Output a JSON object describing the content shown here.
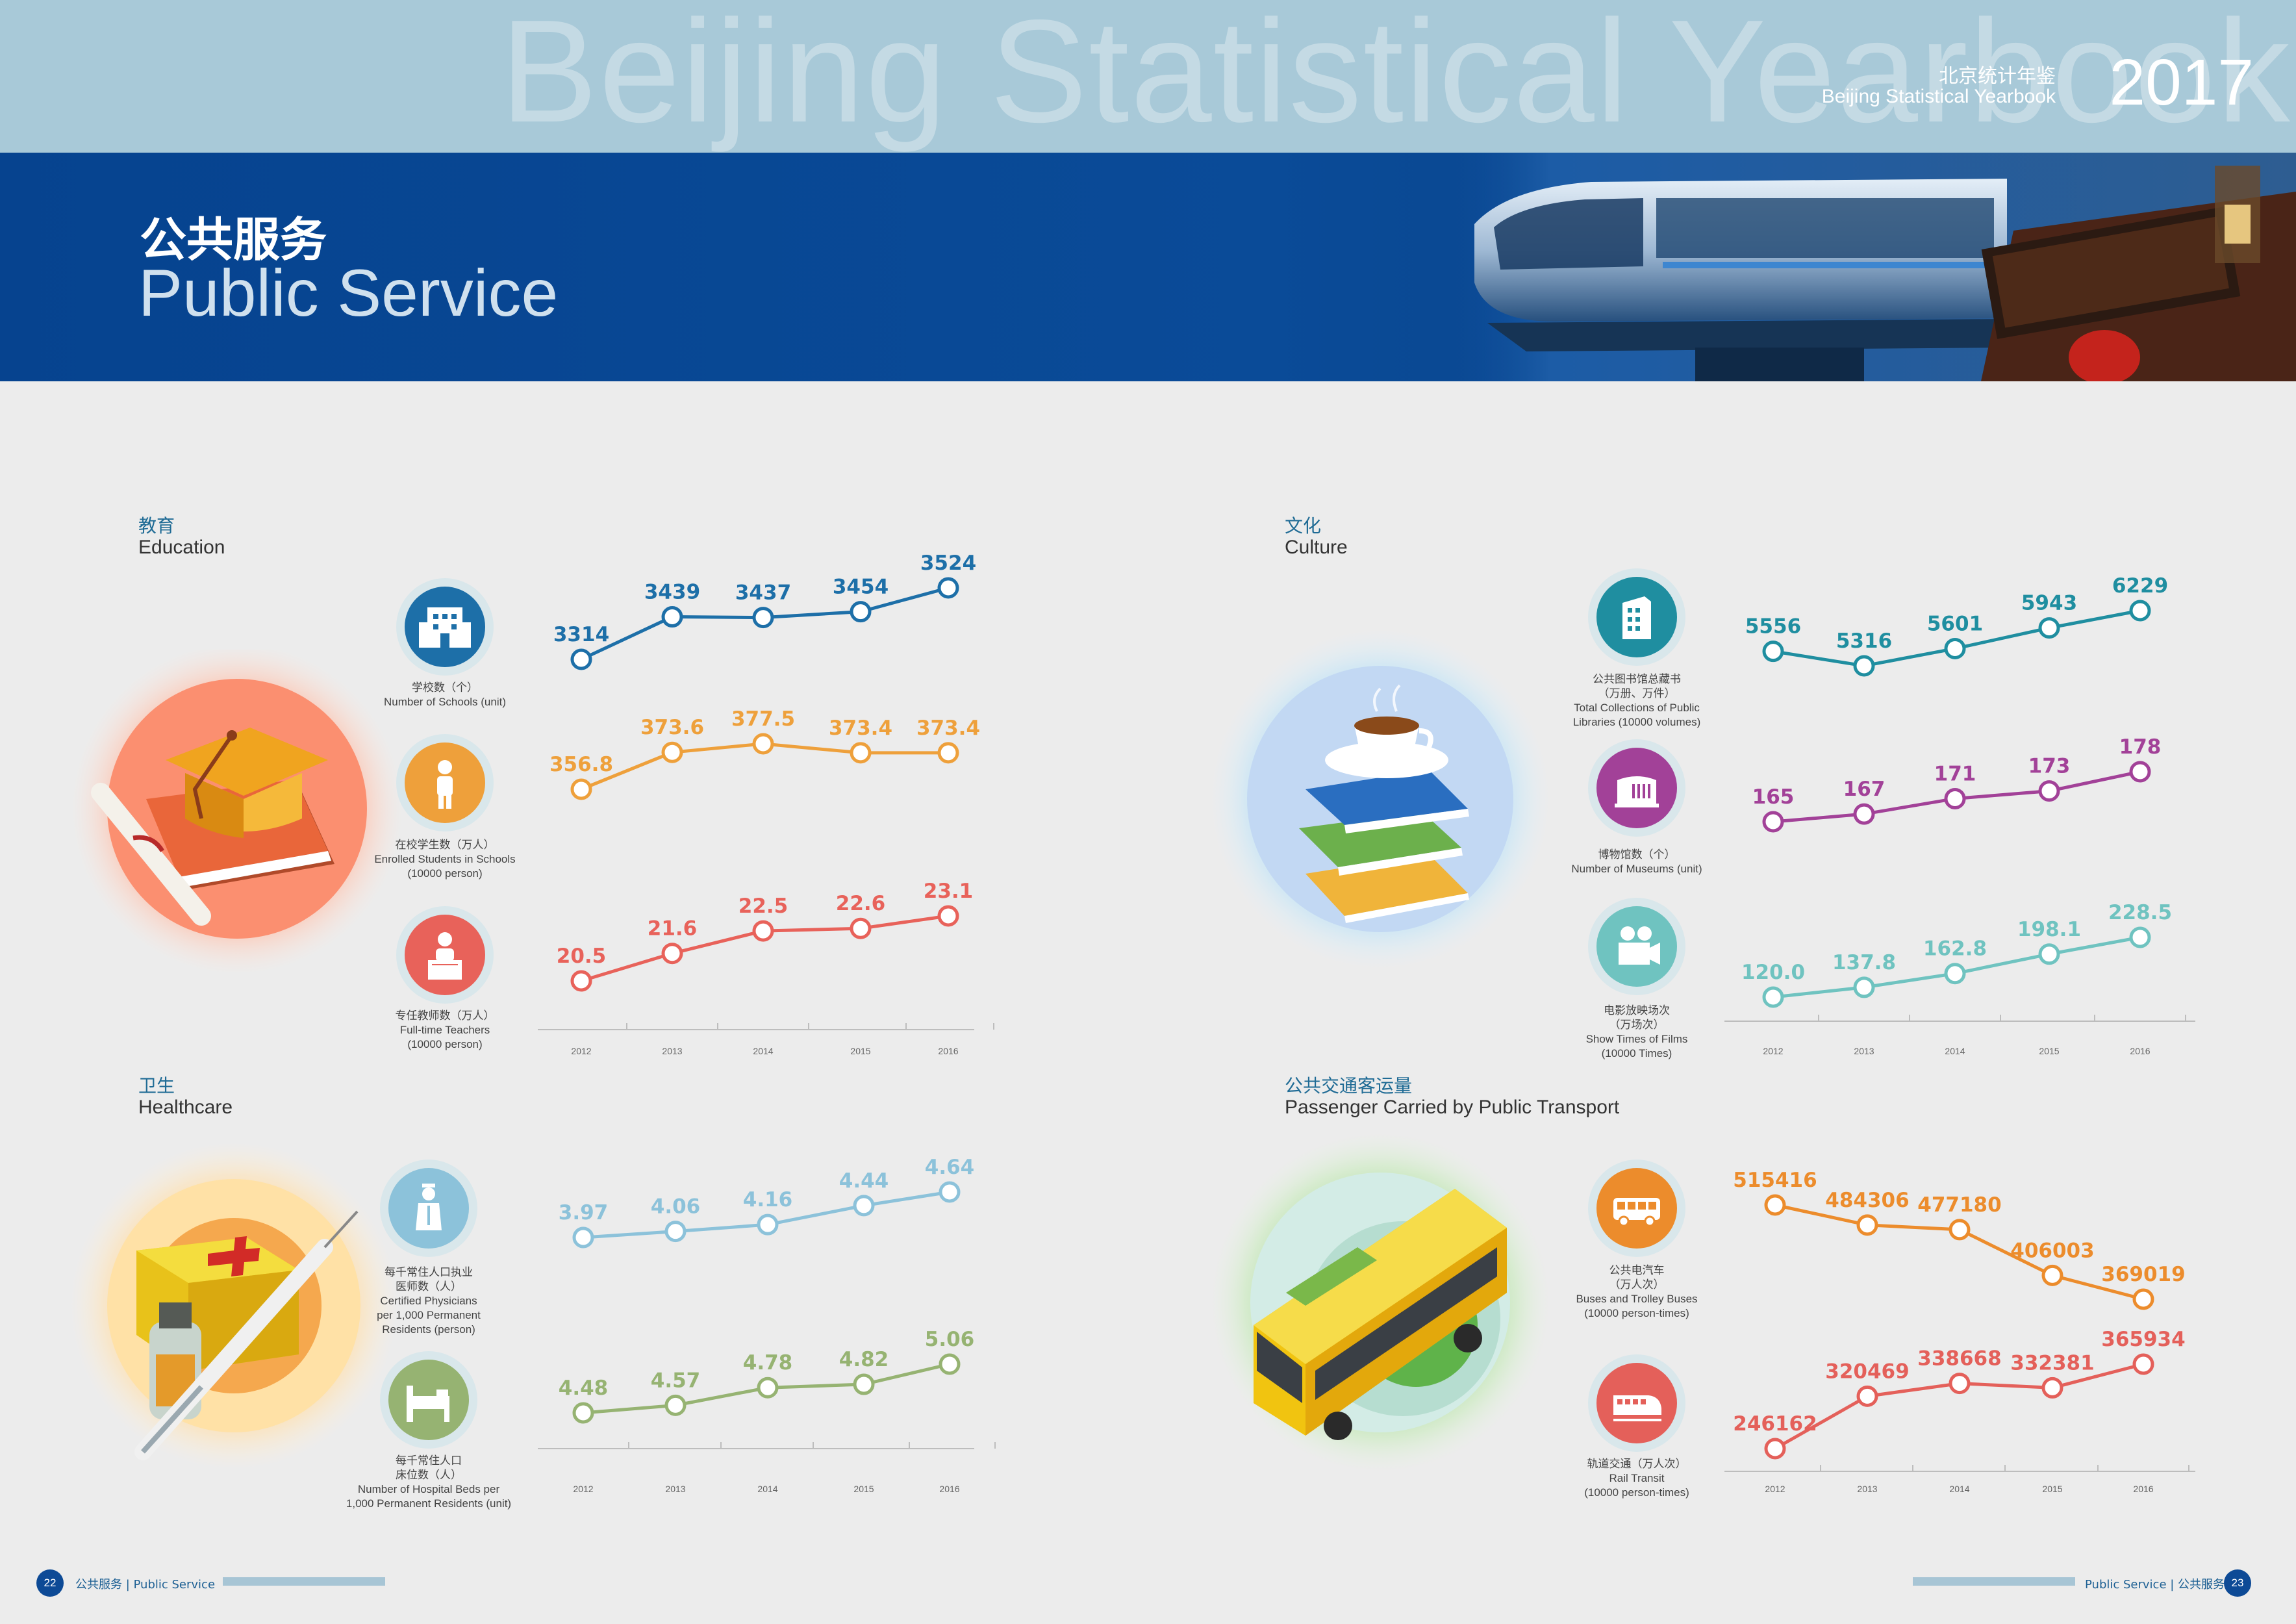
{
  "header": {
    "background_wordmark": "Beijing Statistical Yearbook",
    "yearbook_cn": "北京统计年鉴",
    "yearbook_en": "Beijing Statistical Yearbook",
    "year": "2017",
    "title_cn": "公共服务",
    "title_en": "Public Service"
  },
  "colors": {
    "blue": "#1d6fa8",
    "orange": "#eea03b",
    "red": "#e8625a",
    "lightblue": "#8cc2da",
    "green": "#96b372",
    "teal": "#1f8ea0",
    "purple": "#a24198",
    "mint": "#6fc3c0",
    "bus_orange": "#ec8c2c",
    "rail_red": "#e4605a"
  },
  "sections": {
    "education": {
      "title_cn": "教育",
      "title_en": "Education",
      "icons": [
        {
          "name": "school-building-icon",
          "caption": [
            "学校数（个）",
            "Number of Schools (unit)"
          ]
        },
        {
          "name": "student-icon",
          "caption": [
            "在校学生数（万人）",
            "Enrolled Students in Schools",
            "(10000 person)"
          ]
        },
        {
          "name": "teacher-icon",
          "caption": [
            "专任教师数（万人）",
            "Full-time Teachers",
            "(10000 person)"
          ]
        }
      ]
    },
    "culture": {
      "title_cn": "文化",
      "title_en": "Culture",
      "icons": [
        {
          "name": "library-icon",
          "caption": [
            "公共图书馆总藏书",
            "（万册、万件）",
            "Total Collections of Public",
            "Libraries (10000 volumes)"
          ]
        },
        {
          "name": "museum-icon",
          "caption": [
            "博物馆数（个）",
            "Number of Museums (unit)"
          ]
        },
        {
          "name": "film-camera-icon",
          "caption": [
            "电影放映场次",
            "（万场次）",
            "Show Times of Films",
            "(10000 Times)"
          ]
        }
      ]
    },
    "healthcare": {
      "title_cn": "卫生",
      "title_en": "Healthcare",
      "icons": [
        {
          "name": "physician-icon",
          "caption": [
            "每千常住人口执业",
            "医师数（人）",
            "Certified Physicians",
            "per 1,000 Permanent",
            "Residents (person)"
          ]
        },
        {
          "name": "hospital-bed-icon",
          "caption": [
            "每千常住人口",
            "床位数（人）",
            "Number of Hospital Beds per",
            "1,000 Permanent Residents (unit)"
          ]
        }
      ]
    },
    "transport": {
      "title_cn": "公共交通客运量",
      "title_en": "Passenger Carried by Public Transport",
      "icons": [
        {
          "name": "bus-icon",
          "caption": [
            "公共电汽车",
            "（万人次）",
            "Buses and Trolley Buses",
            "(10000 person-times)"
          ]
        },
        {
          "name": "train-icon",
          "caption": [
            "轨道交通（万人次）",
            "Rail Transit",
            "(10000 person-times)"
          ]
        }
      ]
    }
  },
  "chart_data": [
    {
      "type": "line",
      "x": [
        "2012",
        "2013",
        "2014",
        "2015",
        "2016"
      ],
      "series": [
        {
          "values": [
            3314,
            3439,
            3437,
            3454,
            3524
          ],
          "labels": [
            "3314",
            "3439",
            "3437",
            "3454",
            "3524"
          ],
          "color": "#1d6fa8"
        },
        {
          "values": [
            356.8,
            373.6,
            377.5,
            373.4,
            373.4
          ],
          "labels": [
            "356.8",
            "373.6",
            "377.5",
            "373.4",
            "373.4"
          ],
          "color": "#eea03b"
        },
        {
          "values": [
            20.5,
            21.6,
            22.5,
            22.6,
            23.1
          ],
          "labels": [
            "20.5",
            "21.6",
            "22.5",
            "22.6",
            "23.1"
          ],
          "color": "#e8625a"
        }
      ]
    },
    {
      "type": "line",
      "x": [
        "2012",
        "2013",
        "2014",
        "2015",
        "2016"
      ],
      "series": [
        {
          "values": [
            5556,
            5316,
            5601,
            5943,
            6229
          ],
          "labels": [
            "5556",
            "5316",
            "5601",
            "5943",
            "6229"
          ],
          "color": "#1f8ea0"
        },
        {
          "values": [
            165,
            167,
            171,
            173,
            178
          ],
          "labels": [
            "165",
            "167",
            "171",
            "173",
            "178"
          ],
          "color": "#a24198"
        },
        {
          "values": [
            120.0,
            137.8,
            162.8,
            198.1,
            228.5
          ],
          "labels": [
            "120.0",
            "137.8",
            "162.8",
            "198.1",
            "228.5"
          ],
          "color": "#6fc3c0"
        }
      ]
    },
    {
      "type": "line",
      "x": [
        "2012",
        "2013",
        "2014",
        "2015",
        "2016"
      ],
      "series": [
        {
          "values": [
            3.97,
            4.06,
            4.16,
            4.44,
            4.64
          ],
          "labels": [
            "3.97",
            "4.06",
            "4.16",
            "4.44",
            "4.64"
          ],
          "color": "#8cc2da"
        },
        {
          "values": [
            4.48,
            4.57,
            4.78,
            4.82,
            5.06
          ],
          "labels": [
            "4.48",
            "4.57",
            "4.78",
            "4.82",
            "5.06"
          ],
          "color": "#96b372"
        }
      ]
    },
    {
      "type": "line",
      "x": [
        "2012",
        "2013",
        "2014",
        "2015",
        "2016"
      ],
      "series": [
        {
          "values": [
            515416,
            484306,
            477180,
            406003,
            369019
          ],
          "labels": [
            "515416",
            "484306",
            "477180",
            "406003",
            "369019"
          ],
          "color": "#ec8c2c"
        },
        {
          "values": [
            246162,
            320469,
            338668,
            332381,
            365934
          ],
          "labels": [
            "246162",
            "320469",
            "338668",
            "332381",
            "365934"
          ],
          "color": "#e4605a"
        }
      ]
    }
  ],
  "footer": {
    "left_page": "22",
    "left_cn": "公共服务",
    "left_en": "Public Service",
    "right_page": "23",
    "right_cn": "公共服务",
    "right_en": "Public Service"
  }
}
